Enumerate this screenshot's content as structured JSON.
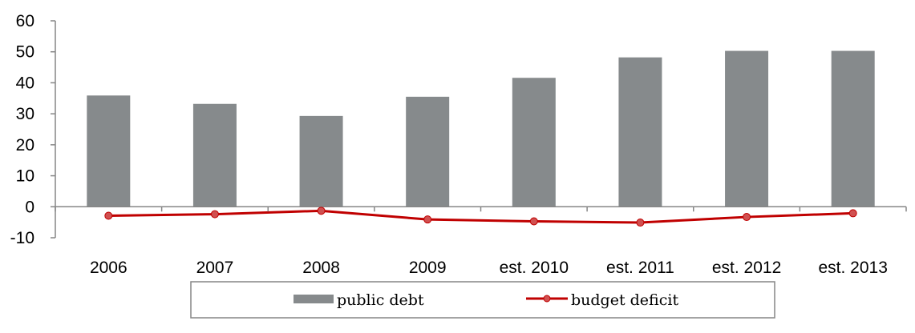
{
  "chart_data": {
    "type": "bar",
    "categories": [
      "2006",
      "2007",
      "2008",
      "2009",
      "est. 2010",
      "est. 2011",
      "est. 2012",
      "est. 2013"
    ],
    "series": [
      {
        "name": "public debt",
        "kind": "bar",
        "values": [
          35.9,
          33.2,
          29.3,
          35.5,
          41.6,
          48.2,
          50.3,
          50.3
        ]
      },
      {
        "name": "budget deficit",
        "kind": "line",
        "values": [
          -2.9,
          -2.4,
          -1.3,
          -4.1,
          -4.7,
          -5.1,
          -3.3,
          -2.1
        ]
      }
    ],
    "y_ticks": [
      "60",
      "50",
      "40",
      "30",
      "20",
      "10",
      "0",
      "-10"
    ],
    "ylim": [
      -10,
      60
    ],
    "grid": false,
    "legend_position": "bottom",
    "colors": {
      "bar": "#868a8c",
      "line": "#c00000",
      "axis": "#868686"
    }
  }
}
